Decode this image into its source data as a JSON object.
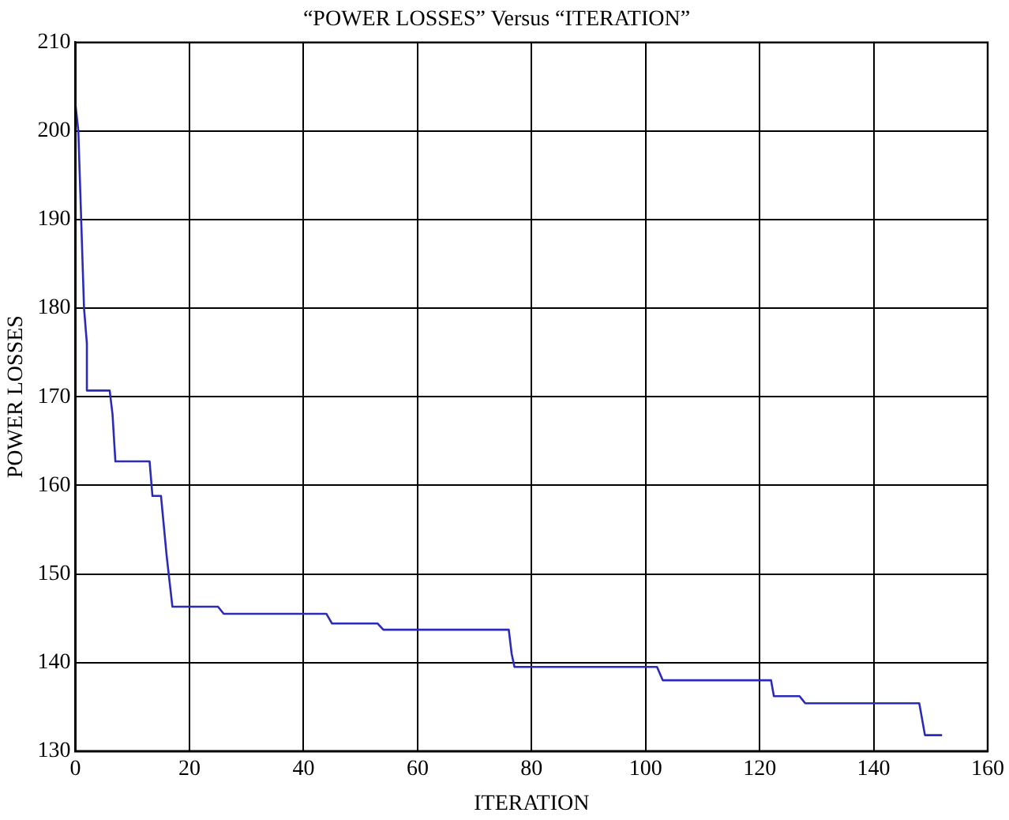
{
  "chart_data": {
    "type": "line",
    "title": "“POWER LOSSES” Versus “ITERATION”",
    "xlabel": "ITERATION",
    "ylabel": "POWER LOSSES",
    "x": [
      0,
      0.5,
      1,
      1.5,
      2,
      2,
      6,
      6.5,
      7,
      13,
      13.5,
      15,
      16,
      17,
      25,
      26,
      44,
      45,
      53,
      54,
      76,
      76.5,
      77,
      102,
      103,
      122,
      122.5,
      127,
      128,
      148,
      149,
      152
    ],
    "series": [
      {
        "color": "#2b2bb8",
        "values": [
          203,
          200,
          190,
          180,
          176,
          170.7,
          170.7,
          168,
          162.7,
          162.7,
          158.8,
          158.8,
          152,
          146.3,
          146.3,
          145.5,
          145.5,
          144.4,
          144.4,
          143.7,
          143.7,
          141,
          139.5,
          139.5,
          138,
          138,
          136.2,
          136.2,
          135.4,
          135.4,
          131.8,
          131.8
        ]
      }
    ],
    "xlim": [
      0,
      160
    ],
    "xticks": [
      0,
      20,
      40,
      60,
      80,
      100,
      120,
      140,
      160
    ],
    "ylim": [
      130,
      210
    ],
    "yticks": [
      130,
      140,
      150,
      160,
      170,
      180,
      190,
      200,
      210
    ],
    "grid": true,
    "legend": false,
    "marker": "none",
    "line_style": "solid"
  }
}
